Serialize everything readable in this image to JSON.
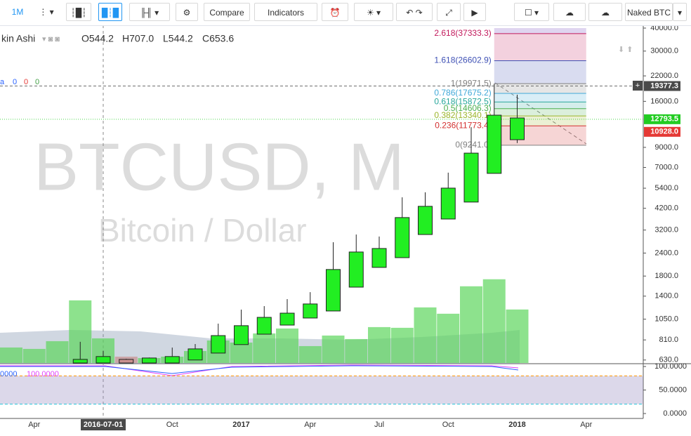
{
  "toolbar": {
    "interval": "1M",
    "compare": "Compare",
    "indicators": "Indicators",
    "account": "Naked BTC"
  },
  "legend": {
    "style": "kin Ashi",
    "open": "O544.2",
    "high": "H707.0",
    "low": "L544.2",
    "close": "C653.6"
  },
  "indicator_legend": [
    {
      "text": "a",
      "color": "#2962ff"
    },
    {
      "text": "0",
      "color": "#2962ff"
    },
    {
      "text": "0",
      "color": "#e53935"
    },
    {
      "text": "0",
      "color": "#43a047"
    }
  ],
  "watermark": {
    "symbol": "BTCUSD, M",
    "description": "Bitcoin / Dollar"
  },
  "oscillator_legend": [
    {
      "text": "0000",
      "color": "#2962ff"
    },
    {
      "text": "100.0000",
      "color": "#e040fb"
    }
  ],
  "chart_data": {
    "type": "candlestick",
    "log_scale": true,
    "up_color": "#22ee22",
    "down_color": "#c99090",
    "x": [
      "2016-06",
      "2016-07",
      "2016-08",
      "2016-09",
      "2016-10",
      "2016-11",
      "2016-12",
      "2017-01",
      "2017-02",
      "2017-03",
      "2017-04",
      "2017-05",
      "2017-06",
      "2017-07",
      "2017-08",
      "2017-09",
      "2017-10",
      "2017-11",
      "2017-12",
      "2018-01"
    ],
    "open": [
      607,
      607,
      635,
      607,
      607,
      630,
      687,
      764,
      870,
      975,
      1065,
      1163,
      1567,
      2006,
      2266,
      3026,
      3673,
      4541,
      6501,
      9906
    ],
    "close": [
      635,
      658,
      607,
      646,
      658,
      724,
      855,
      968,
      1074,
      1132,
      1270,
      1954,
      2432,
      2541,
      3741,
      4306,
      5406,
      8375,
      13460,
      13000
    ],
    "high": [
      791,
      707,
      640,
      650,
      736,
      769,
      993,
      1183,
      1236,
      1349,
      1472,
      2748,
      3026,
      2951,
      4819,
      5130,
      6561,
      11580,
      19900,
      17380
    ],
    "low": [
      607,
      607,
      607,
      607,
      607,
      630,
      687,
      764,
      870,
      975,
      1065,
      1163,
      1567,
      2006,
      2266,
      3026,
      3673,
      4541,
      6501,
      9500
    ],
    "ylim": [
      607,
      40000
    ],
    "yticks": [
      {
        "value": 40000,
        "label": "40000.0"
      },
      {
        "value": 30000,
        "label": "30000.0"
      },
      {
        "value": 22000,
        "label": "22000.0"
      },
      {
        "value": 16000,
        "label": "16000.0"
      },
      {
        "value": 9000,
        "label": "9000.0"
      },
      {
        "value": 7000,
        "label": "7000.0"
      },
      {
        "value": 5400,
        "label": "5400.0"
      },
      {
        "value": 4200,
        "label": "4200.0"
      },
      {
        "value": 3200,
        "label": "3200.0"
      },
      {
        "value": 2400,
        "label": "2400.0"
      },
      {
        "value": 1800,
        "label": "1800.0"
      },
      {
        "value": 1400,
        "label": "1400.0"
      },
      {
        "value": 1050,
        "label": "1050.0"
      },
      {
        "value": 810,
        "label": "810.0"
      },
      {
        "value": 630,
        "label": "630.0"
      }
    ],
    "xticks": [
      {
        "value": "2016-04",
        "label": "Apr"
      },
      {
        "value": "2016-07",
        "label": "2016-07-01"
      },
      {
        "value": "2016-10",
        "label": "Oct"
      },
      {
        "value": "2017-01",
        "label": "2017"
      },
      {
        "value": "2017-04",
        "label": "Apr"
      },
      {
        "value": "2017-07",
        "label": "Jul"
      },
      {
        "value": "2017-10",
        "label": "Oct"
      },
      {
        "value": "2018-01",
        "label": "2018"
      },
      {
        "value": "2018-04",
        "label": "Apr"
      }
    ],
    "volume": {
      "x": [
        "2016-03",
        "2016-04",
        "2016-05",
        "2016-06",
        "2016-07",
        "2016-08",
        "2016-09",
        "2016-10",
        "2016-11",
        "2016-12",
        "2017-01",
        "2017-02",
        "2017-03",
        "2017-04",
        "2017-05",
        "2017-06",
        "2017-07",
        "2017-08",
        "2017-09",
        "2017-10",
        "2017-11",
        "2017-12",
        "2018-01"
      ],
      "values": [
        22,
        20,
        31,
        89,
        35,
        9,
        7,
        9,
        17,
        32,
        29,
        42,
        49,
        24,
        39,
        34,
        51,
        50,
        79,
        70,
        109,
        119,
        76
      ],
      "color": "#5cd65c",
      "down_color": "#c99090",
      "down": [
        "2016-08"
      ]
    },
    "fibonacci": {
      "start": "2017-12",
      "end": "2018-04",
      "levels": [
        {
          "value": 37333.3,
          "label": "2.618(37333.3)",
          "color": "#c2185b"
        },
        {
          "value": 26602.9,
          "label": "1.618(26602.9)",
          "color": "#3f51b5"
        },
        {
          "value": 19971.5,
          "label": "1(19971.5)",
          "color": "#808080"
        },
        {
          "value": 17675.2,
          "label": "0.786(17675.2)",
          "color": "#40a8d8"
        },
        {
          "value": 15872.5,
          "label": "0.618(15872.5)",
          "color": "#26a69a"
        },
        {
          "value": 14606.3,
          "label": "0.5(14606.3)",
          "color": "#4caf50"
        },
        {
          "value": 13340.1,
          "label": "0.382(13340.1)",
          "color": "#9bb52a"
        },
        {
          "value": 11773.4,
          "label": "0.236(11773.4)",
          "color": "#d32f2f"
        },
        {
          "value": 9241.0,
          "label": "0(9241.0)",
          "color": "#808080"
        }
      ]
    },
    "price_markers": [
      {
        "value": 19377.3,
        "color": "#4a4a4a"
      },
      {
        "value": 12793.5,
        "color": "#22cc22"
      },
      {
        "value": 10928.0,
        "label": "10928.0",
        "color": "#e53935"
      }
    ],
    "oscillator": {
      "ylim": [
        -6,
        104.5
      ],
      "yticks": [
        {
          "value": 100,
          "label": "100.0000"
        },
        {
          "value": 50,
          "label": "50.0000"
        },
        {
          "value": 0,
          "label": "0.0000"
        }
      ],
      "bands": [
        20,
        80
      ]
    }
  }
}
